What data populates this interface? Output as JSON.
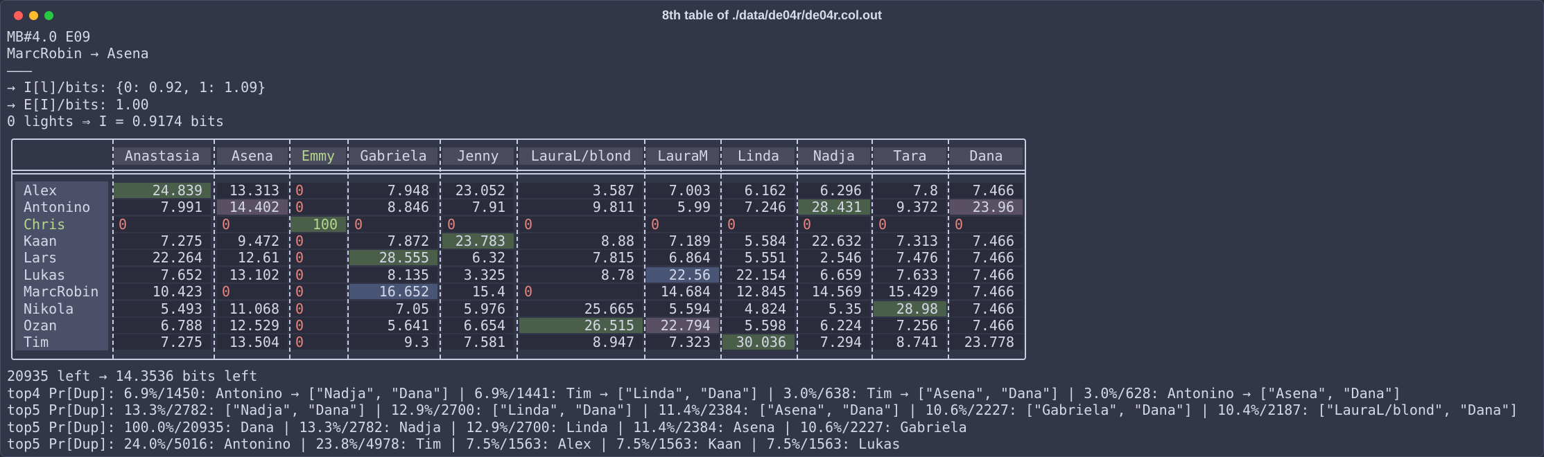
{
  "window": {
    "title": "8th table of ./data/de04r/de04r.col.out"
  },
  "header_lines": [
    "MB#4.0 E09",
    "MarcRobin → Asena",
    "———",
    "→ I[l]/bits: {0: 0.92, 1: 1.09}",
    "→ E[I]/bits: 1.00",
    "0 lights ⇒ I = 0.9174 bits"
  ],
  "table": {
    "columns": [
      "Anastasia",
      "Asena",
      "Emmy",
      "Gabriela",
      "Jenny",
      "LauraL/blond",
      "LauraM",
      "Linda",
      "Nadja",
      "Tara",
      "Dana"
    ],
    "highlighted_column": "Emmy",
    "highlighted_row": "Chris",
    "rows": [
      {
        "name": "Alex",
        "values": [
          "24.839",
          "13.313",
          "0",
          "7.948",
          "23.052",
          "3.587",
          "7.003",
          "6.162",
          "6.296",
          "7.8",
          "7.466"
        ]
      },
      {
        "name": "Antonino",
        "values": [
          "7.991",
          "14.402",
          "0",
          "8.846",
          "7.91",
          "9.811",
          "5.99",
          "7.246",
          "28.431",
          "9.372",
          "23.96"
        ]
      },
      {
        "name": "Chris",
        "values": [
          "0",
          "0",
          "100",
          "0",
          "0",
          "0",
          "0",
          "0",
          "0",
          "0",
          "0"
        ]
      },
      {
        "name": "Kaan",
        "values": [
          "7.275",
          "9.472",
          "0",
          "7.872",
          "23.783",
          "8.88",
          "7.189",
          "5.584",
          "22.632",
          "7.313",
          "7.466"
        ]
      },
      {
        "name": "Lars",
        "values": [
          "22.264",
          "12.61",
          "0",
          "28.555",
          "6.32",
          "7.815",
          "6.864",
          "5.551",
          "2.546",
          "7.476",
          "7.466"
        ]
      },
      {
        "name": "Lukas",
        "values": [
          "7.652",
          "13.102",
          "0",
          "8.135",
          "3.325",
          "8.78",
          "22.56",
          "22.154",
          "6.659",
          "7.633",
          "7.466"
        ]
      },
      {
        "name": "MarcRobin",
        "values": [
          "10.423",
          "0",
          "0",
          "16.652",
          "15.4",
          "0",
          "14.684",
          "12.845",
          "14.569",
          "15.429",
          "7.466"
        ]
      },
      {
        "name": "Nikola",
        "values": [
          "5.493",
          "11.068",
          "0",
          "7.05",
          "5.976",
          "25.665",
          "5.594",
          "4.824",
          "5.35",
          "28.98",
          "7.466"
        ]
      },
      {
        "name": "Ozan",
        "values": [
          "6.788",
          "12.529",
          "0",
          "5.641",
          "6.654",
          "26.515",
          "22.794",
          "5.598",
          "6.224",
          "7.256",
          "7.466"
        ]
      },
      {
        "name": "Tim",
        "values": [
          "7.275",
          "13.504",
          "0",
          "9.3",
          "7.581",
          "8.947",
          "7.323",
          "30.036",
          "7.294",
          "8.741",
          "23.778"
        ]
      }
    ],
    "cell_highlights": [
      {
        "row": 0,
        "col": 0,
        "kind": "green"
      },
      {
        "row": 1,
        "col": 1,
        "kind": "purple"
      },
      {
        "row": 1,
        "col": 8,
        "kind": "green"
      },
      {
        "row": 1,
        "col": 10,
        "kind": "purple"
      },
      {
        "row": 2,
        "col": 2,
        "kind": "green"
      },
      {
        "row": 3,
        "col": 4,
        "kind": "green"
      },
      {
        "row": 4,
        "col": 3,
        "kind": "green"
      },
      {
        "row": 5,
        "col": 6,
        "kind": "blue"
      },
      {
        "row": 6,
        "col": 3,
        "kind": "blue"
      },
      {
        "row": 7,
        "col": 9,
        "kind": "green"
      },
      {
        "row": 8,
        "col": 5,
        "kind": "green"
      },
      {
        "row": 8,
        "col": 6,
        "kind": "purple"
      },
      {
        "row": 9,
        "col": 7,
        "kind": "green"
      }
    ]
  },
  "footer_lines": [
    "20935 left → 14.3536 bits left",
    "top4 Pr[Dup]: 6.9%/1450: Antonino → [\"Nadja\", \"Dana\"] | 6.9%/1441: Tim → [\"Linda\", \"Dana\"] | 3.0%/638: Tim → [\"Asena\", \"Dana\"] | 3.0%/628: Antonino → [\"Asena\", \"Dana\"]",
    "top5 Pr[Dup]: 13.3%/2782: [\"Nadja\", \"Dana\"] | 12.9%/2700: [\"Linda\", \"Dana\"] | 11.4%/2384: [\"Asena\", \"Dana\"] | 10.6%/2227: [\"Gabriela\", \"Dana\"] | 10.4%/2187: [\"LauraL/blond\", \"Dana\"]",
    "top5 Pr[Dup]: 100.0%/20935: Dana | 13.3%/2782: Nadja | 12.9%/2700: Linda | 11.4%/2384: Asena | 10.6%/2227: Gabriela",
    "top5 Pr[Dup]: 24.0%/5016: Antonino | 23.8%/4978: Tim | 7.5%/1563: Alex | 7.5%/1563: Kaan | 7.5%/1563: Lukas"
  ],
  "colors": {
    "background": "#333648",
    "zero": "#e8837e",
    "highlight_text": "#b5d68a",
    "cell_green": "#4a5f4a",
    "cell_blue": "#495575",
    "cell_purple": "#5a5064"
  }
}
